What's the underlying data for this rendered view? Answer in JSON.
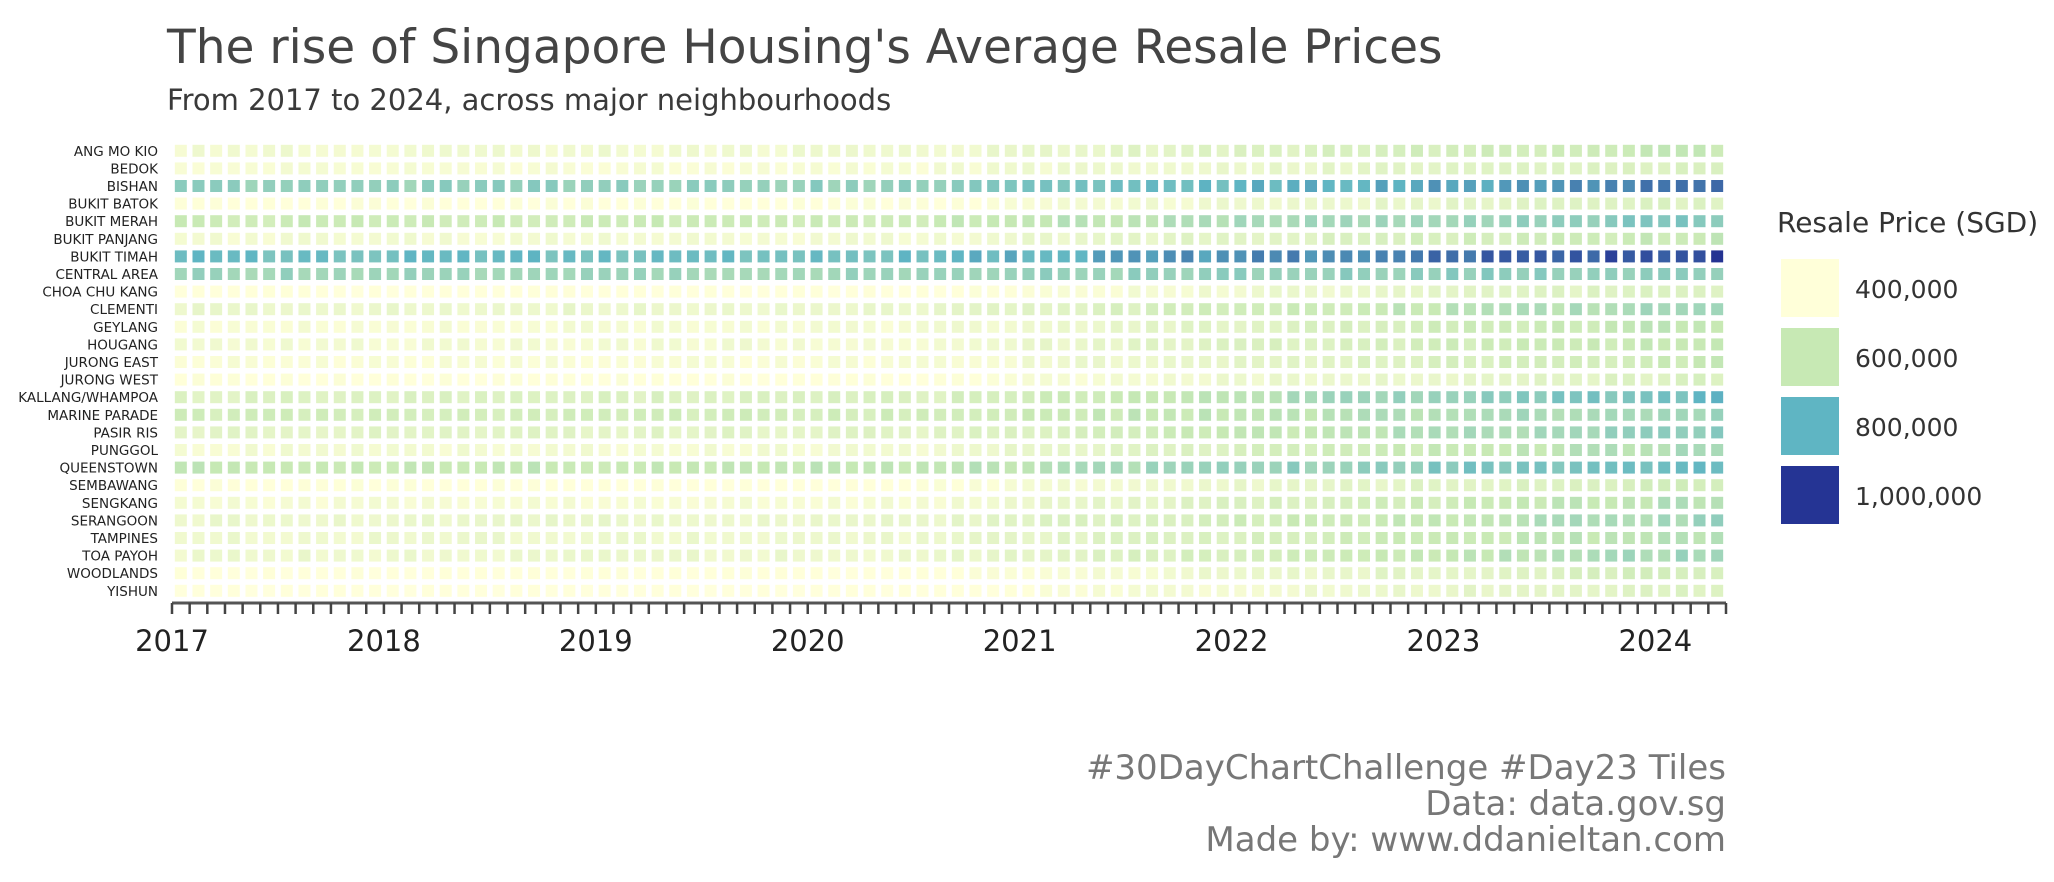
{
  "chart_data": {
    "type": "heatmap",
    "title": "The rise of Singapore Housing's Average Resale Prices",
    "subtitle": "From 2017 to 2024, across major neighbourhoods",
    "x_tick_labels": [
      "2017",
      "2018",
      "2019",
      "2020",
      "2021",
      "2022",
      "2023",
      "2024"
    ],
    "x_start": "2017-01",
    "x_end": "2024-04",
    "months": [
      "2017-01",
      "2017-02",
      "2017-03",
      "2017-04",
      "2017-05",
      "2017-06",
      "2017-07",
      "2017-08",
      "2017-09",
      "2017-10",
      "2017-11",
      "2017-12",
      "2018-01",
      "2018-02",
      "2018-03",
      "2018-04",
      "2018-05",
      "2018-06",
      "2018-07",
      "2018-08",
      "2018-09",
      "2018-10",
      "2018-11",
      "2018-12",
      "2019-01",
      "2019-02",
      "2019-03",
      "2019-04",
      "2019-05",
      "2019-06",
      "2019-07",
      "2019-08",
      "2019-09",
      "2019-10",
      "2019-11",
      "2019-12",
      "2020-01",
      "2020-02",
      "2020-03",
      "2020-04",
      "2020-05",
      "2020-06",
      "2020-07",
      "2020-08",
      "2020-09",
      "2020-10",
      "2020-11",
      "2020-12",
      "2021-01",
      "2021-02",
      "2021-03",
      "2021-04",
      "2021-05",
      "2021-06",
      "2021-07",
      "2021-08",
      "2021-09",
      "2021-10",
      "2021-11",
      "2021-12",
      "2022-01",
      "2022-02",
      "2022-03",
      "2022-04",
      "2022-05",
      "2022-06",
      "2022-07",
      "2022-08",
      "2022-09",
      "2022-10",
      "2022-11",
      "2022-12",
      "2023-01",
      "2023-02",
      "2023-03",
      "2023-04",
      "2023-05",
      "2023-06",
      "2023-07",
      "2023-08",
      "2023-09",
      "2023-10",
      "2023-11",
      "2023-12",
      "2024-01",
      "2024-02",
      "2024-03",
      "2024-04"
    ],
    "towns": [
      {
        "name": "ANG MO KIO",
        "start": 450000,
        "end": 600000
      },
      {
        "name": "BEDOK",
        "start": 430000,
        "end": 540000
      },
      {
        "name": "BISHAN",
        "start": 700000,
        "end": 890000
      },
      {
        "name": "BUKIT BATOK",
        "start": 400000,
        "end": 530000
      },
      {
        "name": "BUKIT MERAH",
        "start": 580000,
        "end": 740000
      },
      {
        "name": "BUKIT PANJANG",
        "start": 440000,
        "end": 600000
      },
      {
        "name": "BUKIT TIMAH",
        "start": 770000,
        "end": 970000
      },
      {
        "name": "CENTRAL AREA",
        "start": 680000,
        "end": 720000
      },
      {
        "name": "CHOA CHU KANG",
        "start": 390000,
        "end": 530000
      },
      {
        "name": "CLEMENTI",
        "start": 470000,
        "end": 680000
      },
      {
        "name": "GEYLANG",
        "start": 430000,
        "end": 620000
      },
      {
        "name": "HOUGANG",
        "start": 440000,
        "end": 610000
      },
      {
        "name": "JURONG EAST",
        "start": 420000,
        "end": 590000
      },
      {
        "name": "JURONG WEST",
        "start": 400000,
        "end": 530000
      },
      {
        "name": "KALLANG/WHAMPOA",
        "start": 520000,
        "end": 780000
      },
      {
        "name": "MARINE PARADE",
        "start": 560000,
        "end": 680000
      },
      {
        "name": "PASIR RIS",
        "start": 500000,
        "end": 710000
      },
      {
        "name": "PUNGGOL",
        "start": 440000,
        "end": 660000
      },
      {
        "name": "QUEENSTOWN",
        "start": 600000,
        "end": 790000
      },
      {
        "name": "SEMBAWANG",
        "start": 400000,
        "end": 560000
      },
      {
        "name": "SENGKANG",
        "start": 430000,
        "end": 640000
      },
      {
        "name": "SERANGOON",
        "start": 470000,
        "end": 680000
      },
      {
        "name": "TAMPINES",
        "start": 460000,
        "end": 640000
      },
      {
        "name": "TOA PAYOH",
        "start": 460000,
        "end": 680000
      },
      {
        "name": "WOODLANDS",
        "start": 390000,
        "end": 560000
      },
      {
        "name": "YISHUN",
        "start": 380000,
        "end": 530000
      }
    ],
    "legend": {
      "title": "Resale Price (SGD)",
      "labels": [
        "400,000",
        "600,000",
        "800,000",
        "1,000,000"
      ],
      "values": [
        400000,
        600000,
        800000,
        1000000
      ],
      "colors": [
        "#ffffd9",
        "#c7e9b4",
        "#5fb5c3",
        "#253494"
      ]
    },
    "color_scale": {
      "stops": [
        300000,
        400000,
        600000,
        800000,
        1000000,
        1100000
      ],
      "colors": [
        "#ffffe5",
        "#ffffd9",
        "#c7e9b4",
        "#5fb5c3",
        "#253494",
        "#081d58"
      ]
    }
  },
  "caption": {
    "line1": "#30DayChartChallenge #Day23 Tiles",
    "line2": "Data: data.gov.sg",
    "line3": "Made by: www.ddanieltan.com"
  }
}
